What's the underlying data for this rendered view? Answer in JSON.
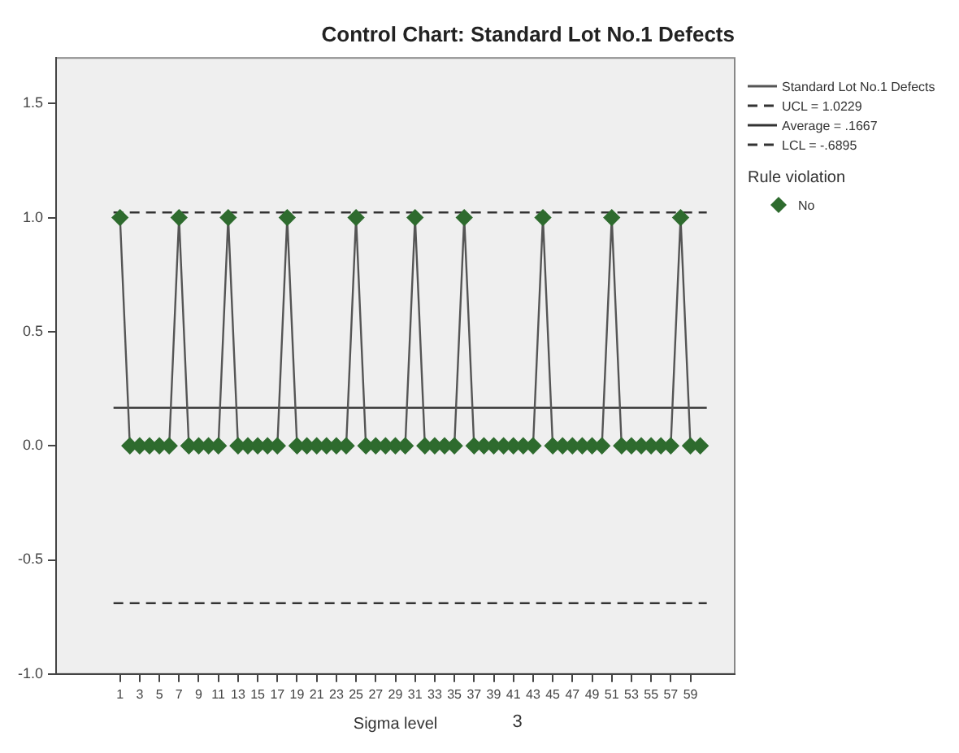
{
  "chart_data": {
    "type": "line",
    "title": "Control Chart: Standard Lot No.1 Defects",
    "xlabel": "Sigma level",
    "annotations": [
      "3"
    ],
    "x": [
      1,
      2,
      3,
      4,
      5,
      6,
      7,
      8,
      9,
      10,
      11,
      12,
      13,
      14,
      15,
      16,
      17,
      18,
      19,
      20,
      21,
      22,
      23,
      24,
      25,
      26,
      27,
      28,
      29,
      30,
      31,
      32,
      33,
      34,
      35,
      36,
      37,
      38,
      39,
      40,
      41,
      42,
      43,
      44,
      45,
      46,
      47,
      48,
      49,
      50,
      51,
      52,
      53,
      54,
      55,
      56,
      57,
      58,
      59,
      60
    ],
    "series": [
      {
        "name": "Standard Lot No.1 Defects",
        "color": "#555555",
        "marker": "none",
        "values": [
          1,
          0,
          0,
          0,
          0,
          0,
          1,
          0,
          0,
          0,
          0,
          1,
          0,
          0,
          0,
          0,
          0,
          1,
          0,
          0,
          0,
          0,
          0,
          0,
          1,
          0,
          0,
          0,
          0,
          0,
          1,
          0,
          0,
          0,
          0,
          1,
          0,
          0,
          0,
          0,
          0,
          0,
          0,
          1,
          0,
          0,
          0,
          0,
          0,
          0,
          1,
          0,
          0,
          0,
          0,
          0,
          0,
          1,
          0,
          0
        ]
      },
      {
        "name": "No",
        "type": "scatter",
        "color": "#2e6b2e",
        "marker": "diamond",
        "values": [
          1,
          0,
          0,
          0,
          0,
          0,
          1,
          0,
          0,
          0,
          0,
          1,
          0,
          0,
          0,
          0,
          0,
          1,
          0,
          0,
          0,
          0,
          0,
          0,
          1,
          0,
          0,
          0,
          0,
          0,
          1,
          0,
          0,
          0,
          0,
          1,
          0,
          0,
          0,
          0,
          0,
          0,
          0,
          1,
          0,
          0,
          0,
          0,
          0,
          0,
          1,
          0,
          0,
          0,
          0,
          0,
          0,
          1,
          0,
          0
        ]
      }
    ],
    "ref_lines": [
      {
        "axis": "y",
        "value": 1.0229,
        "label": "UCL = 1.0229",
        "line_style": "dashed",
        "color": "#333333"
      },
      {
        "axis": "y",
        "value": 0.1667,
        "label": "Average = .1667",
        "line_style": "solid",
        "color": "#333333"
      },
      {
        "axis": "y",
        "value": -0.6895,
        "label": "LCL = -.6895",
        "line_style": "dashed",
        "color": "#333333"
      }
    ],
    "legend_title": "Rule violation",
    "legend": "right",
    "xlim": [
      -5.5,
      63.5
    ],
    "xticks": [
      1,
      3,
      5,
      7,
      9,
      11,
      13,
      15,
      17,
      19,
      21,
      23,
      25,
      27,
      29,
      31,
      33,
      35,
      37,
      39,
      41,
      43,
      45,
      47,
      49,
      51,
      53,
      55,
      57,
      59
    ],
    "ylim": [
      -1,
      1.7
    ],
    "yticks": [
      {
        "value": 1.5,
        "label": "1.5"
      },
      {
        "value": 1,
        "label": "1.0"
      },
      {
        "value": 0.5,
        "label": "0.5"
      },
      {
        "value": 0,
        "label": "0.0"
      },
      {
        "value": -0.5,
        "label": "-0.5"
      },
      {
        "value": -1,
        "label": "-1.0"
      }
    ],
    "grid": false
  }
}
